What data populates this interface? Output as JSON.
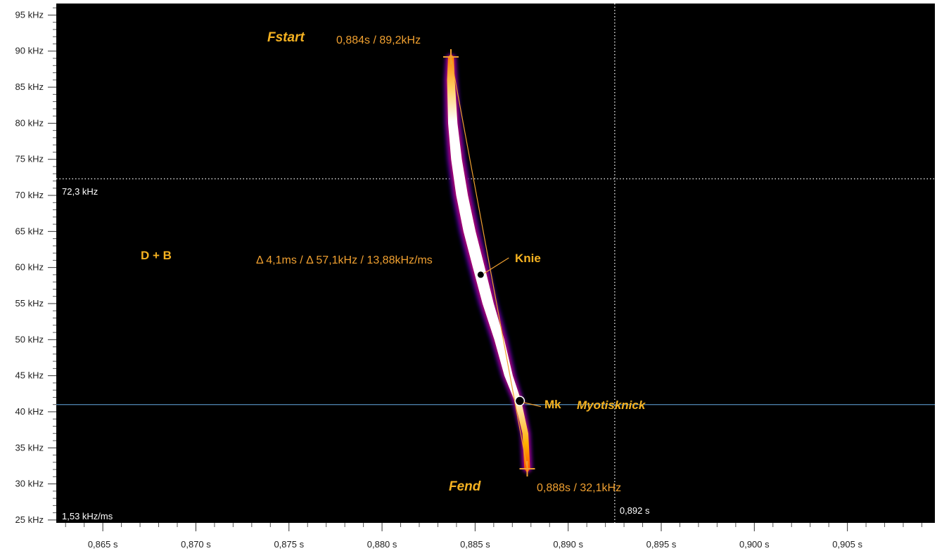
{
  "chart_data": {
    "type": "spectrogram",
    "xunit": "s",
    "yunit": "kHz",
    "xlim": [
      0.8625,
      0.9097
    ],
    "ylim": [
      24.6,
      96.6
    ],
    "y_ticks": [
      25,
      30,
      35,
      40,
      45,
      50,
      55,
      60,
      65,
      70,
      75,
      80,
      85,
      90,
      95
    ],
    "y_tick_labels": [
      "25 kHz",
      "30 kHz",
      "35 kHz",
      "40 kHz",
      "45 kHz",
      "50 kHz",
      "55 kHz",
      "60 kHz",
      "65 kHz",
      "70 kHz",
      "75 kHz",
      "80 kHz",
      "85 kHz",
      "90 kHz",
      "95 kHz"
    ],
    "x_ticks": [
      0.865,
      0.87,
      0.875,
      0.88,
      0.885,
      0.89,
      0.895,
      0.9,
      0.905
    ],
    "x_tick_labels": [
      "0,865 s",
      "0,870 s",
      "0,875 s",
      "0,880 s",
      "0,885 s",
      "0,890 s",
      "0,895 s",
      "0,900 s",
      "0,905 s"
    ],
    "call_contour": [
      [
        0.8837,
        89.2
      ],
      [
        0.8837,
        86
      ],
      [
        0.8838,
        80
      ],
      [
        0.884,
        75
      ],
      [
        0.8843,
        70
      ],
      [
        0.8847,
        65
      ],
      [
        0.8852,
        60
      ],
      [
        0.8857,
        55
      ],
      [
        0.8863,
        50
      ],
      [
        0.8868,
        45
      ],
      [
        0.8873,
        41.5
      ],
      [
        0.8877,
        37
      ],
      [
        0.8878,
        32.1
      ]
    ],
    "fit_line": [
      [
        0.8837,
        89.2
      ],
      [
        0.8878,
        32.1
      ]
    ],
    "crosshair": {
      "x": 0.8925,
      "y": 72.3,
      "x_label": "0,892 s",
      "y_label": "72,3 kHz"
    },
    "reference_line_khz": 41.0,
    "slope_readout": "1,53 kHz/ms",
    "annotations": {
      "fstart": {
        "label": "Fstart",
        "x": 0.8837,
        "y": 89.2,
        "value": "0,884s / 89,2kHz"
      },
      "fend": {
        "label": "Fend",
        "x": 0.8878,
        "y": 32.1,
        "value": "0,888s / 32,1kHz"
      },
      "knie": {
        "label": "Knie",
        "x": 0.8853,
        "y": 59.0
      },
      "mk": {
        "label": "Mk",
        "name": "Myotisknick",
        "x": 0.8874,
        "y": 41.5
      },
      "delta": "Δ 4,1ms / Δ 57,1kHz  / 13,88kHz/ms",
      "group": "D + B"
    }
  },
  "colors": {
    "background": "#000000",
    "annotation": "#f0a030",
    "crosshair": "#e6e6e6",
    "reference_line": "#4a7ca6",
    "marker": "#f0a030"
  }
}
